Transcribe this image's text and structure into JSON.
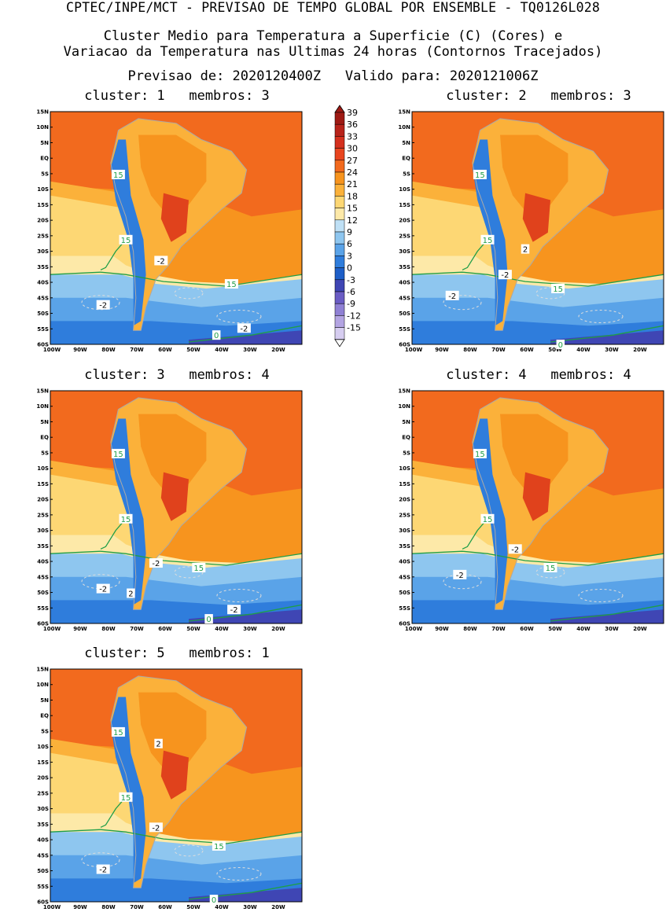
{
  "header": {
    "title": "CPTEC/INPE/MCT - PREVISAO DE TEMPO GLOBAL POR ENSEMBLE - TQ0126L028",
    "subtitle_line1": "Cluster Medio para Temperatura a Superficie (C) (Cores) e",
    "subtitle_line2": "Variacao da Temperatura nas Ultimas 24 horas (Contornos Tracejados)",
    "forecast_line": "Previsao de: 2020120400Z   Valido para: 2020121006Z"
  },
  "axes": {
    "lat_labels": [
      "15N",
      "10N",
      "5N",
      "EQ",
      "5S",
      "10S",
      "15S",
      "20S",
      "25S",
      "30S",
      "35S",
      "40S",
      "45S",
      "50S",
      "55S",
      "60S"
    ],
    "lon_labels": [
      "100W",
      "90W",
      "80W",
      "70W",
      "60W",
      "50W",
      "40W",
      "30W",
      "20W"
    ]
  },
  "colorbar": {
    "labels": [
      "39",
      "36",
      "33",
      "30",
      "27",
      "24",
      "21",
      "18",
      "15",
      "12",
      "9",
      "6",
      "3",
      "0",
      "-3",
      "-6",
      "-9",
      "-12",
      "-15"
    ],
    "colors": [
      "#9e1a14",
      "#b8231a",
      "#d4301e",
      "#e8451f",
      "#f26a1e",
      "#f7941e",
      "#fbb13a",
      "#fdd774",
      "#fde9a8",
      "#bfe0f5",
      "#8ec6ef",
      "#5aa3e8",
      "#2f7ddc",
      "#1e5fc8",
      "#3f46b4",
      "#6a5cc4",
      "#8f80d4",
      "#b3a4e2",
      "#d6cdf0"
    ]
  },
  "clusters": [
    {
      "title": "cluster: 1   membros: 3",
      "labels": [
        "15",
        "15",
        "15",
        "-2",
        "-2",
        "-2",
        "0"
      ]
    },
    {
      "title": "cluster: 2   membros: 3",
      "labels": [
        "15",
        "15",
        "15",
        "2",
        "-2",
        "-2",
        "0"
      ]
    },
    {
      "title": "cluster: 3   membros: 4",
      "labels": [
        "15",
        "15",
        "15",
        "-2",
        "-2",
        "2",
        "-2",
        "0"
      ]
    },
    {
      "title": "cluster: 4   membros: 4",
      "labels": [
        "15",
        "15",
        "15",
        "-2",
        "-2"
      ]
    },
    {
      "title": "cluster: 5   membros: 1",
      "labels": [
        "15",
        "15",
        "2",
        "-2",
        "15",
        "-2",
        "0"
      ]
    }
  ],
  "colors": {
    "c30": "#f26a1e",
    "c27": "#f7941e",
    "c24": "#fbb13a",
    "c21": "#fdd774",
    "c18": "#fde9a8",
    "c15": "#bfe0f5",
    "c12": "#8ec6ef",
    "c9": "#5aa3e8",
    "c6": "#2f7ddc",
    "c3": "#1e5fc8",
    "c0": "#3f46b4",
    "hot": "#e0421c",
    "green": "#1f9e48",
    "boundary": "#a9a9a9"
  }
}
